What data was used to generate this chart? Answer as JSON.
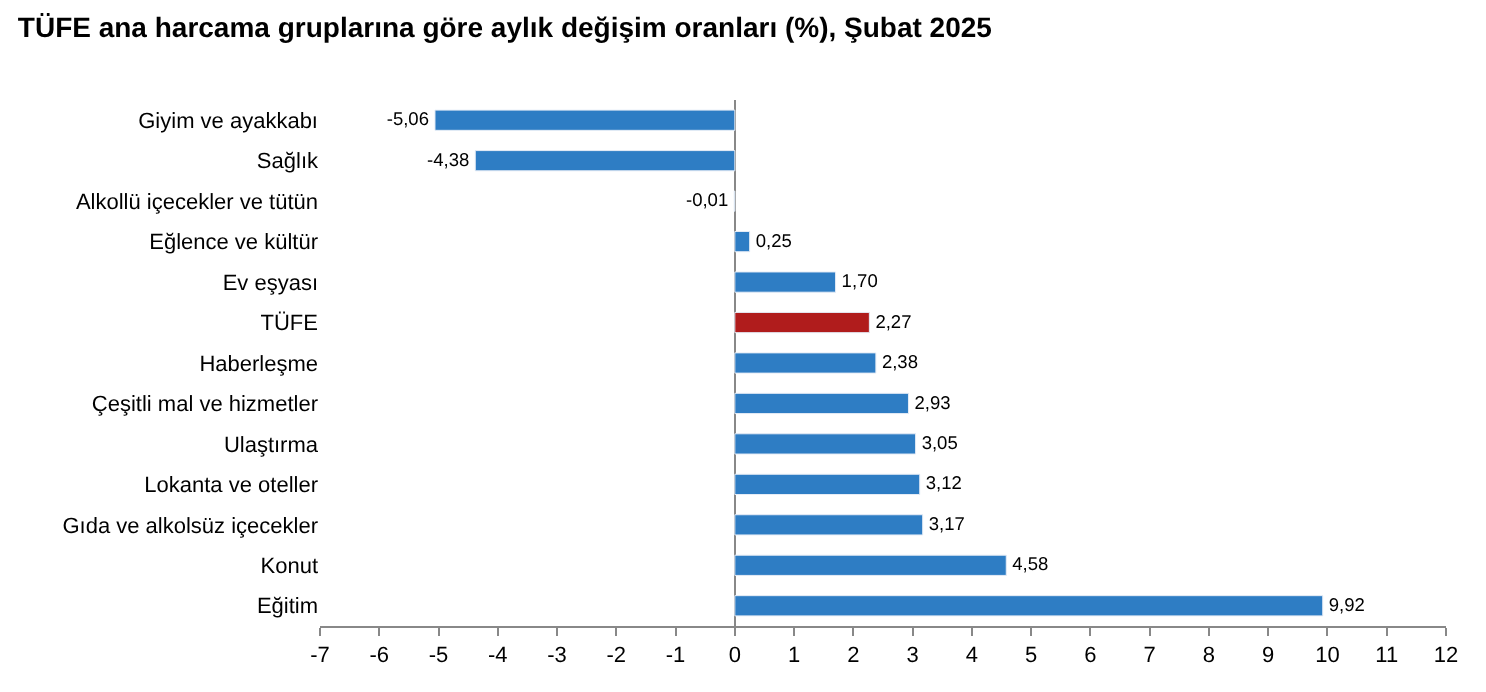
{
  "chart_data": {
    "type": "bar",
    "orientation": "horizontal",
    "title": "TÜFE ana harcama gruplarına göre aylık değişim oranları (%), Şubat 2025",
    "categories": [
      "Giyim ve ayakkabı",
      "Sağlık",
      "Alkollü içecekler ve tütün",
      "Eğlence ve kültür",
      "Ev eşyası",
      "TÜFE",
      "Haberleşme",
      "Çeşitli mal ve hizmetler",
      "Ulaştırma",
      "Lokanta ve oteller",
      "Gıda ve alkolsüz içecekler",
      "Konut",
      "Eğitim"
    ],
    "values": [
      -5.06,
      -4.38,
      -0.01,
      0.25,
      1.7,
      2.27,
      2.38,
      2.93,
      3.05,
      3.12,
      3.17,
      4.58,
      9.92
    ],
    "value_labels": [
      "-5,06",
      "-4,38",
      "-0,01",
      "0,25",
      "1,70",
      "2,27",
      "2,38",
      "2,93",
      "3,05",
      "3,12",
      "3,17",
      "4,58",
      "9,92"
    ],
    "colors": [
      "#2e7dc4",
      "#2e7dc4",
      "#2e7dc4",
      "#2e7dc4",
      "#2e7dc4",
      "#b01c1c",
      "#2e7dc4",
      "#2e7dc4",
      "#2e7dc4",
      "#2e7dc4",
      "#2e7dc4",
      "#2e7dc4",
      "#2e7dc4"
    ],
    "xlim": [
      -7,
      12
    ],
    "xticks": [
      -7,
      -6,
      -5,
      -4,
      -3,
      -2,
      -1,
      0,
      1,
      2,
      3,
      4,
      5,
      6,
      7,
      8,
      9,
      10,
      11,
      12
    ],
    "legend": false
  }
}
